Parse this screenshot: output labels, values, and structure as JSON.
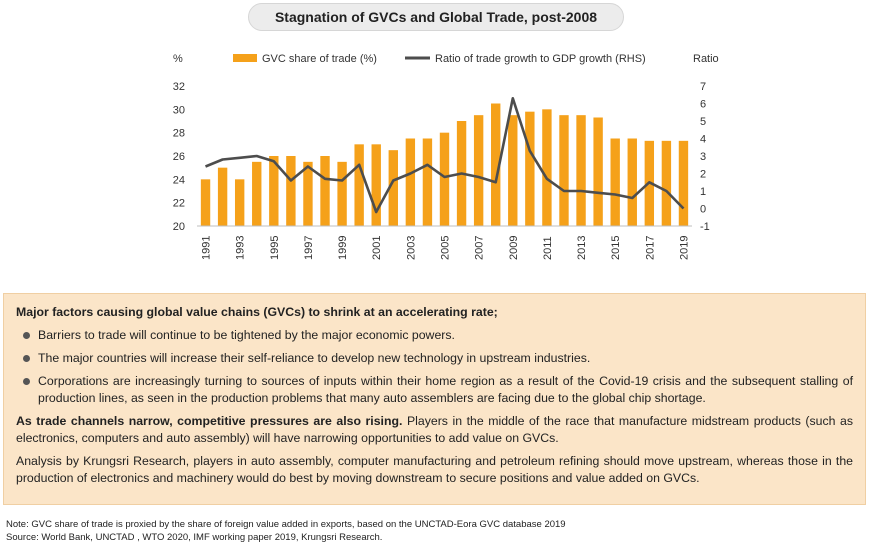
{
  "header": {
    "title": "Stagnation of GVCs and Global Trade, post-2008"
  },
  "chart_data": {
    "type": "bar",
    "categories": [
      "1991",
      "1992",
      "1993",
      "1994",
      "1995",
      "1996",
      "1997",
      "1998",
      "1999",
      "2000",
      "2001",
      "2002",
      "2003",
      "2004",
      "2005",
      "2006",
      "2007",
      "2008",
      "2009",
      "2010",
      "2011",
      "2012",
      "2013",
      "2014",
      "2015",
      "2016",
      "2017",
      "2018",
      "2019"
    ],
    "tick_labels": [
      "1991",
      "1993",
      "1995",
      "1997",
      "1999",
      "2001",
      "2003",
      "2005",
      "2007",
      "2009",
      "2011",
      "2013",
      "2015",
      "2017",
      "2019"
    ],
    "ylabel_left": "%",
    "ylabel_right": "Ratio",
    "ylim_left": [
      20,
      32
    ],
    "yticks_left": [
      20,
      22,
      24,
      26,
      28,
      30,
      32
    ],
    "ylim_right": [
      -1,
      7
    ],
    "yticks_right": [
      -1,
      0,
      1,
      2,
      3,
      4,
      5,
      6,
      7
    ],
    "legend_position": "top",
    "series": [
      {
        "name": "GVC share of trade (%)",
        "type": "bar",
        "axis": "left",
        "color": "#f5a11a",
        "values": [
          24.0,
          25.0,
          24.0,
          25.5,
          26.0,
          26.0,
          25.5,
          26.0,
          25.5,
          27.0,
          27.0,
          26.5,
          27.5,
          27.5,
          28.0,
          29.0,
          29.5,
          30.5,
          29.5,
          29.8,
          30.0,
          29.5,
          29.5,
          29.3,
          27.5,
          27.5,
          27.3,
          27.3,
          27.3
        ]
      },
      {
        "name": "Ratio of trade growth to GDP growth (RHS)",
        "type": "line",
        "axis": "right",
        "color": "#4d4d4d",
        "values": [
          2.4,
          2.8,
          2.9,
          3.0,
          2.7,
          1.6,
          2.4,
          1.7,
          1.6,
          2.5,
          -0.2,
          1.6,
          2.0,
          2.5,
          1.8,
          2.0,
          1.8,
          1.5,
          6.3,
          3.3,
          1.7,
          1.0,
          1.0,
          0.9,
          0.8,
          0.6,
          1.5,
          1.0,
          0.0
        ]
      }
    ]
  },
  "info": {
    "heading": "Major factors causing global value chains (GVCs) to shrink at an accelerating rate;",
    "bullets": [
      "Barriers to trade will continue to be tightened by the major economic powers.",
      "The major countries will increase their self-reliance to develop new technology in upstream industries.",
      "Corporations are increasingly turning to sources of inputs within their home region as a result of the Covid-19 crisis and the subsequent stalling of production lines, as seen in the production problems that many auto assemblers are facing due to the global chip shortage."
    ],
    "para1_bold": "As trade channels narrow, competitive pressures are also rising.",
    "para1_rest": " Players in the middle of the race that manufacture midstream products (such as electronics, computers and auto assembly) will have narrowing opportunities to add value on GVCs.",
    "para2": "Analysis by Krungsri Research, players in auto assembly, computer manufacturing and petroleum refining should move upstream, whereas those in the production of electronics and machinery would do best by moving downstream to secure positions and value added on GVCs."
  },
  "footer": {
    "note": "Note: GVC share of trade is proxied by the share of foreign value added in  exports, based on the UNCTAD-Eora GVC database 2019",
    "source": "Source: World Bank, UNCTAD , WTO 2020, IMF working paper 2019, Krungsri Research."
  }
}
